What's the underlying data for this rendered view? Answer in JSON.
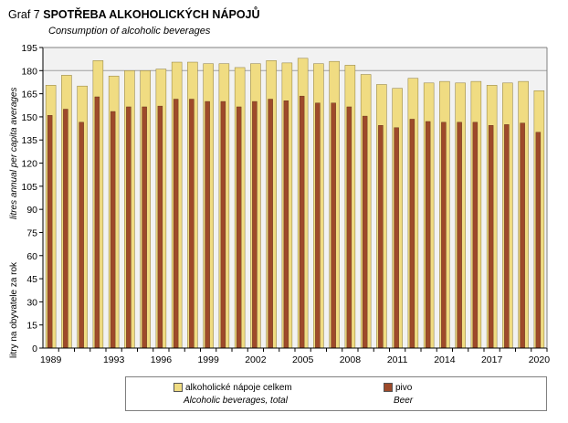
{
  "title_prefix": "Graf 7",
  "title": "SPOTŘEBA ALKOHOLICKÝCH NÁPOJŮ",
  "subtitle": "Consumption of alcoholic beverages",
  "chart_data": {
    "type": "bar",
    "ylabel_en": "litres annual per capita averages",
    "ylabel_cz": "litry na obyvatele za rok",
    "ylim": [
      0,
      195
    ],
    "yticks": [
      0,
      15,
      30,
      45,
      60,
      75,
      90,
      105,
      120,
      135,
      150,
      165,
      180,
      195
    ],
    "grid": "horizontal gridline at 180",
    "plot_background": "#f2f2f2",
    "categories": [
      "1989",
      "1990",
      "1991",
      "1992",
      "1993",
      "1994",
      "1995",
      "1996",
      "1997",
      "1998",
      "1999",
      "2000",
      "2001",
      "2002",
      "2003",
      "2004",
      "2005",
      "2006",
      "2007",
      "2008",
      "2009",
      "2010",
      "2011",
      "2012",
      "2013",
      "2014",
      "2015",
      "2016",
      "2017",
      "2018",
      "2019",
      "2020"
    ],
    "xtick_labels": [
      "1989",
      "1993",
      "1996",
      "1999",
      "2002",
      "2005",
      "2008",
      "2011",
      "2014",
      "2017",
      "2020"
    ],
    "series": [
      {
        "name": "alkoholické nápoje celkem",
        "name_en": "Alcoholic beverages, total",
        "color": "#f0dc82",
        "values": [
          170.5,
          177,
          170,
          186.5,
          176.5,
          180,
          180,
          181,
          185.5,
          185.5,
          184.5,
          184.5,
          182,
          184.5,
          186.5,
          185,
          188,
          184.5,
          186,
          183.5,
          177.5,
          171,
          168.5,
          175,
          172,
          173,
          172,
          173,
          170.5,
          172,
          173,
          167
        ]
      },
      {
        "name": "pivo",
        "name_en": "Beer",
        "color": "#9e4a2a",
        "values": [
          151,
          155,
          146.5,
          163,
          153.5,
          156.5,
          156.5,
          157,
          161.5,
          161.5,
          160,
          160,
          156.5,
          160,
          161.5,
          160.5,
          163.5,
          159,
          159,
          156.5,
          150.5,
          144.5,
          143,
          148.5,
          147,
          146.5,
          146.5,
          146.5,
          144.5,
          145,
          146,
          140
        ]
      }
    ],
    "legend_position": "bottom"
  }
}
